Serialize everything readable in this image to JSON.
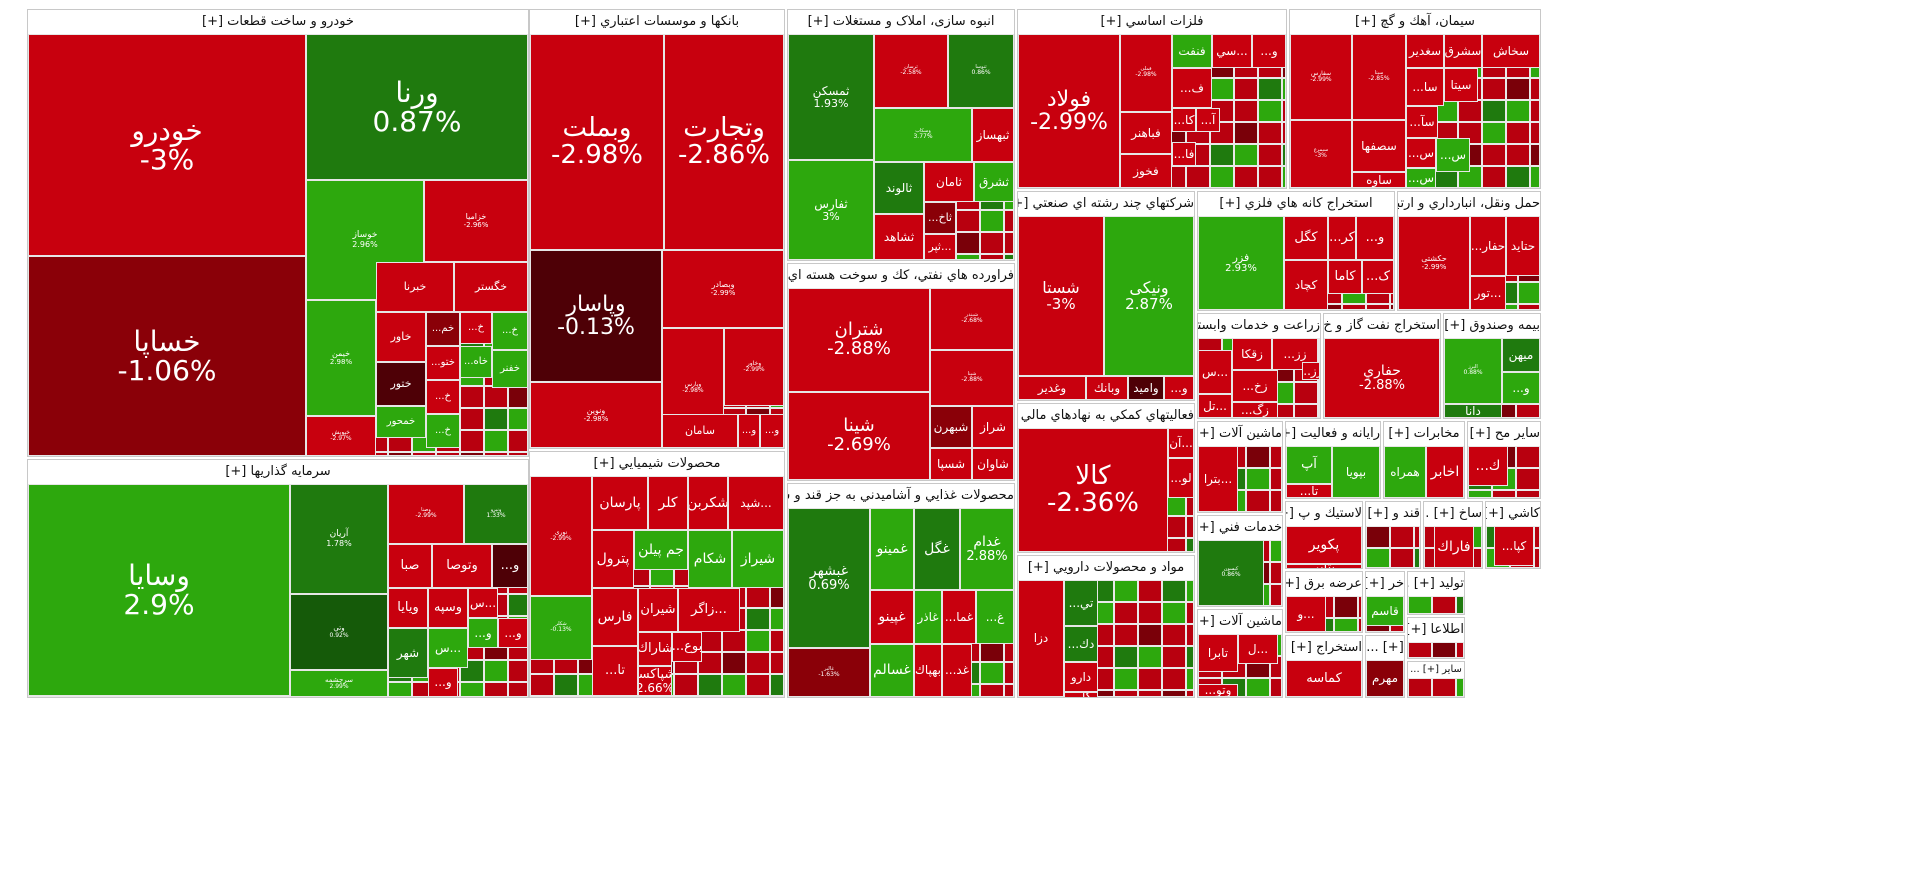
{
  "chart_data": {
    "type": "treemap",
    "title": "",
    "value_unit": "%",
    "color_scale": {
      "strong_negative": "#b30012",
      "negative": "#e0101e",
      "dark_negative": "#6b0009",
      "near_zero_negative": "#3f0006",
      "positive": "#1f9e0d",
      "strong_positive": "#1a6d0a",
      "dark_positive": "#0f4a07"
    },
    "sectors": [
      {
        "name": "خودرو و ساخت قطعات [+]",
        "tiles": [
          {
            "symbol": "خودرو",
            "change": "-3%"
          },
          {
            "symbol": "خساپا",
            "change": "-1.06%"
          },
          {
            "symbol": "ورنا",
            "change": "0.87%"
          },
          {
            "symbol": "خوساز",
            "change": "2.96%"
          },
          {
            "symbol": "خزامیا",
            "change": "-2.96%"
          },
          {
            "symbol": "خیمن",
            "change": "2.98%"
          },
          {
            "symbol": "خبرنا",
            "change": ""
          },
          {
            "symbol": "خگستر",
            "change": ""
          },
          {
            "symbol": "خاور",
            "change": ""
          },
          {
            "symbol": "خم...",
            "change": ""
          },
          {
            "symbol": "خ...",
            "change": ""
          },
          {
            "symbol": "خ...",
            "change": ""
          },
          {
            "symbol": "ختو...",
            "change": ""
          },
          {
            "symbol": "خاه...",
            "change": ""
          },
          {
            "symbol": "خفنر",
            "change": ""
          },
          {
            "symbol": "ختور",
            "change": ""
          },
          {
            "symbol": "خ...",
            "change": ""
          },
          {
            "symbol": "خمحور",
            "change": ""
          },
          {
            "symbol": "خ...",
            "change": ""
          },
          {
            "symbol": "خپویش",
            "change": "-2.97%"
          }
        ]
      },
      {
        "name": "بانكها و موسسات اعتباري [+]",
        "tiles": [
          {
            "symbol": "وبملت",
            "change": "-2.98%"
          },
          {
            "symbol": "وتجارت",
            "change": "-2.86%"
          },
          {
            "symbol": "وپاسار",
            "change": "-0.13%"
          },
          {
            "symbol": "وبصادر",
            "change": "-2.99%"
          },
          {
            "symbol": "ونوین",
            "change": "-2.98%"
          },
          {
            "symbol": "وپارس",
            "change": "-2.98%"
          },
          {
            "symbol": "وخاور",
            "change": "-2.99%"
          },
          {
            "symbol": "سامان",
            "change": ""
          },
          {
            "symbol": "و...",
            "change": ""
          },
          {
            "symbol": "و...",
            "change": ""
          }
        ]
      },
      {
        "name": "انبوه سازی، املاک و مستغلات [+]",
        "tiles": [
          {
            "symbol": "ثمسکن",
            "change": "1.93%"
          },
          {
            "symbol": "ثفارس",
            "change": "3%"
          },
          {
            "symbol": "ثرسان",
            "change": "-2.58%"
          },
          {
            "symbol": "ثنوسا",
            "change": "0.86%"
          },
          {
            "symbol": "وسکاب",
            "change": "3.77%"
          },
          {
            "symbol": "ثبهساز",
            "change": ""
          },
          {
            "symbol": "ثالوند",
            "change": ""
          },
          {
            "symbol": "ثامان",
            "change": ""
          },
          {
            "symbol": "ثشرق",
            "change": ""
          },
          {
            "symbol": "ثاخ...",
            "change": ""
          },
          {
            "symbol": "ثشاهد",
            "change": ""
          },
          {
            "symbol": "...ثپر",
            "change": ""
          }
        ]
      },
      {
        "name": "فلزات اساسي [+]",
        "tiles": [
          {
            "symbol": "فولاد",
            "change": "-2.99%"
          },
          {
            "symbol": "فملی",
            "change": "-2.98%"
          },
          {
            "symbol": "فنفت",
            "change": ""
          },
          {
            "symbol": "...سي",
            "change": ""
          },
          {
            "symbol": "و...",
            "change": ""
          },
          {
            "symbol": "ف...",
            "change": ""
          },
          {
            "symbol": "فباهنر",
            "change": ""
          },
          {
            "symbol": "فخوز",
            "change": ""
          },
          {
            "symbol": "کا...",
            "change": ""
          },
          {
            "symbol": "آ...",
            "change": ""
          },
          {
            "symbol": "فا...",
            "change": ""
          }
        ]
      },
      {
        "name": "سيمان، آهك و گچ [+]",
        "tiles": [
          {
            "symbol": "سفارس",
            "change": "-2.99%"
          },
          {
            "symbol": "سیتا",
            "change": "-2.85%"
          },
          {
            "symbol": "سخاش",
            "change": ""
          },
          {
            "symbol": "سشرق",
            "change": ""
          },
          {
            "symbol": "سغدير",
            "change": ""
          },
          {
            "symbol": "سیتا",
            "change": ""
          },
          {
            "symbol": "سا...",
            "change": ""
          },
          {
            "symbol": "سآ...",
            "change": ""
          },
          {
            "symbol": "س...",
            "change": ""
          },
          {
            "symbol": "سصفها",
            "change": ""
          },
          {
            "symbol": "ساوه",
            "change": ""
          },
          {
            "symbol": "س...",
            "change": ""
          },
          {
            "symbol": "س...",
            "change": ""
          },
          {
            "symbol": "سیمرغ",
            "change": "-3%"
          }
        ]
      },
      {
        "name": "شركتهاي چند رشته اي صنعتي [+]",
        "tiles": [
          {
            "symbol": "شستا",
            "change": "-3%"
          },
          {
            "symbol": "ونیکی",
            "change": "2.87%"
          },
          {
            "symbol": "وغدير",
            "change": ""
          },
          {
            "symbol": "وبانك",
            "change": ""
          },
          {
            "symbol": "وامید",
            "change": ""
          },
          {
            "symbol": "و...",
            "change": ""
          }
        ]
      },
      {
        "name": "استخراج كانه هاي فلزي [+]",
        "tiles": [
          {
            "symbol": "فزر",
            "change": "2.93%"
          },
          {
            "symbol": "کگل",
            "change": ""
          },
          {
            "symbol": "کر...",
            "change": ""
          },
          {
            "symbol": "و...",
            "change": ""
          },
          {
            "symbol": "کاما",
            "change": ""
          },
          {
            "symbol": "ک...",
            "change": ""
          },
          {
            "symbol": "کچاد",
            "change": ""
          }
        ]
      },
      {
        "name": "حمل ونقل، انبارداري و ارتبا [+]...",
        "tiles": [
          {
            "symbol": "حکشتی",
            "change": "-2.99%"
          },
          {
            "symbol": "حفار...",
            "change": ""
          },
          {
            "symbol": "حتاید",
            "change": ""
          },
          {
            "symbol": "...تور",
            "change": ""
          }
        ]
      },
      {
        "name": "فراورده هاي نفتي، كك و سوخت هسته اي [+]",
        "tiles": [
          {
            "symbol": "شتران",
            "change": "-2.88%"
          },
          {
            "symbol": "شبندر",
            "change": "-2.68%"
          },
          {
            "symbol": "شپنا",
            "change": "-2.88%"
          },
          {
            "symbol": "شینا",
            "change": "-2.69%"
          },
          {
            "symbol": "شراز",
            "change": ""
          },
          {
            "symbol": "شبهرن",
            "change": ""
          },
          {
            "symbol": "شاوان",
            "change": ""
          },
          {
            "symbol": "شسپا",
            "change": ""
          }
        ]
      },
      {
        "name": "زراعت و خدمات وابسته [+]",
        "tiles": [
          {
            "symbol": "زقکا",
            "change": ""
          },
          {
            "symbol": "زز...",
            "change": ""
          },
          {
            "symbol": "زز...",
            "change": ""
          },
          {
            "symbol": "...س",
            "change": ""
          },
          {
            "symbol": "زخ...",
            "change": ""
          },
          {
            "symbol": "زگ...",
            "change": ""
          },
          {
            "symbol": "...تل",
            "change": ""
          }
        ]
      },
      {
        "name": "استخراج نفت گاز و خ [+]...",
        "tiles": [
          {
            "symbol": "حفاري",
            "change": "-2.88%"
          }
        ]
      },
      {
        "name": "بيمه وصندوق [+]...",
        "tiles": [
          {
            "symbol": "ميهن",
            "change": ""
          },
          {
            "symbol": "و...",
            "change": ""
          },
          {
            "symbol": "دانا",
            "change": ""
          },
          {
            "symbol": "البرز",
            "change": "0.88%"
          }
        ]
      },
      {
        "name": "سرمايه گذاريها [+]",
        "tiles": [
          {
            "symbol": "وسايا",
            "change": "2.9%"
          },
          {
            "symbol": "آریان",
            "change": "1.78%"
          },
          {
            "symbol": "وتي",
            "change": "0.92%"
          },
          {
            "symbol": "سرچشمه",
            "change": "2.99%"
          },
          {
            "symbol": "وصنا",
            "change": "-2.99%"
          },
          {
            "symbol": "ونیرو",
            "change": "1.33%"
          },
          {
            "symbol": "صبا",
            "change": ""
          },
          {
            "symbol": "وتوصا",
            "change": ""
          },
          {
            "symbol": "و...",
            "change": ""
          },
          {
            "symbol": "ويايا",
            "change": ""
          },
          {
            "symbol": "وسپه",
            "change": ""
          },
          {
            "symbol": "...س",
            "change": ""
          },
          {
            "symbol": "و...",
            "change": ""
          },
          {
            "symbol": "...س",
            "change": ""
          },
          {
            "symbol": "و...",
            "change": ""
          },
          {
            "symbol": "شهر",
            "change": ""
          },
          {
            "symbol": "و...",
            "change": ""
          }
        ]
      },
      {
        "name": "محصولات شيميايي [+]",
        "tiles": [
          {
            "symbol": "نوری",
            "change": "-2.99%"
          },
          {
            "symbol": "پارسان",
            "change": ""
          },
          {
            "symbol": "کلر",
            "change": ""
          },
          {
            "symbol": "شکربن",
            "change": ""
          },
          {
            "symbol": "...شپد",
            "change": ""
          },
          {
            "symbol": "پترول",
            "change": ""
          },
          {
            "symbol": "جم پیلن",
            "change": ""
          },
          {
            "symbol": "شکام",
            "change": ""
          },
          {
            "symbol": "شیراز",
            "change": ""
          },
          {
            "symbol": "فارس",
            "change": ""
          },
          {
            "symbol": "شیران",
            "change": ""
          },
          {
            "symbol": "...زاگر",
            "change": ""
          },
          {
            "symbol": "تا...",
            "change": ""
          },
          {
            "symbol": "شاراك",
            "change": ""
          },
          {
            "symbol": "بوع...",
            "change": ""
          },
          {
            "symbol": "ش...",
            "change": ""
          },
          {
            "symbol": "شپاکسا",
            "change": "2.66%"
          },
          {
            "symbol": "شکلر",
            "change": "-0.13%"
          }
        ]
      },
      {
        "name": "محصولات غذايي و آشاميدني به جز قند و شكر [+]",
        "tiles": [
          {
            "symbol": "غبشهر",
            "change": "0.69%"
          },
          {
            "symbol": "غمینو",
            "change": ""
          },
          {
            "symbol": "غگل",
            "change": ""
          },
          {
            "symbol": "غدام",
            "change": "2.88%"
          },
          {
            "symbol": "غپینو",
            "change": ""
          },
          {
            "symbol": "غاذر",
            "change": ""
          },
          {
            "symbol": "غما...",
            "change": ""
          },
          {
            "symbol": "غ...",
            "change": ""
          },
          {
            "symbol": "غسالم",
            "change": ""
          },
          {
            "symbol": "بهپاك",
            "change": ""
          },
          {
            "symbol": "غد...",
            "change": ""
          },
          {
            "symbol": "غکور",
            "change": ""
          },
          {
            "symbol": "غالبر",
            "change": "-1.63%"
          }
        ]
      },
      {
        "name": "فعاليتهاي كمكي به نهادهاي مالي [+] ...",
        "tiles": [
          {
            "symbol": "كالا",
            "change": "-2.36%"
          },
          {
            "symbol": "...آن",
            "change": ""
          },
          {
            "symbol": "لو...",
            "change": ""
          }
        ]
      },
      {
        "name": "مواد و محصولات دارويي [+]",
        "tiles": [
          {
            "symbol": "دزا",
            "change": ""
          },
          {
            "symbol": "تي...",
            "change": ""
          },
          {
            "symbol": "دك...",
            "change": ""
          },
          {
            "symbol": "دارو",
            "change": ""
          },
          {
            "symbol": "دقارا",
            "change": ""
          },
          {
            "symbol": "كا...",
            "change": ""
          }
        ]
      },
      {
        "name": "ماشين آلات [+] ...",
        "tiles": [
          {
            "symbol": "...بترا",
            "change": ""
          }
        ]
      },
      {
        "name": "رايانه و فعاليت [+] ...",
        "tiles": [
          {
            "symbol": "بپويا",
            "change": ""
          },
          {
            "symbol": "آپ",
            "change": ""
          },
          {
            "symbol": "تا...",
            "change": ""
          }
        ]
      },
      {
        "name": "مخابرات [+]",
        "tiles": [
          {
            "symbol": "همراه",
            "change": ""
          },
          {
            "symbol": "اخابر",
            "change": ""
          }
        ]
      },
      {
        "name": "ساير مح [+] ...",
        "tiles": [
          {
            "symbol": "ك...",
            "change": ""
          }
        ]
      },
      {
        "name": "خدمات فني [+] ...",
        "tiles": [
          {
            "symbol": "کیسون",
            "change": "0.86%"
          }
        ]
      },
      {
        "name": "لاستيك و پ [+] ...",
        "tiles": [
          {
            "symbol": "پكوير",
            "change": ""
          },
          {
            "symbol": "پتاير",
            "change": ""
          }
        ]
      },
      {
        "name": "قند و [+] ...",
        "tiles": []
      },
      {
        "name": "ساخ [+] ...",
        "tiles": [
          {
            "symbol": "فاراك",
            "change": ""
          }
        ]
      },
      {
        "name": "كاشي [+] ...",
        "tiles": [
          {
            "symbol": "كپا...",
            "change": ""
          }
        ]
      },
      {
        "name": "عرضه برق [+] ...",
        "tiles": [
          {
            "symbol": "...و",
            "change": ""
          }
        ]
      },
      {
        "name": "خر [+] ...",
        "tiles": [
          {
            "symbol": "قاسم",
            "change": ""
          }
        ]
      },
      {
        "name": "توليد [+] ...",
        "tiles": []
      },
      {
        "name": "اطلاعا [+]",
        "tiles": []
      },
      {
        "name": "ماشين آلات [+] ...",
        "tiles": [
          {
            "symbol": "...ل",
            "change": ""
          },
          {
            "symbol": "تابرا",
            "change": ""
          },
          {
            "symbol": "وتو...",
            "change": ""
          }
        ]
      },
      {
        "name": "استخراج [+] ...",
        "tiles": [
          {
            "symbol": "كماسه",
            "change": ""
          }
        ]
      },
      {
        "name": "[+] ...",
        "tiles": [
          {
            "symbol": "مهرم",
            "change": ""
          }
        ]
      },
      {
        "name": "ساير [+] ...",
        "tiles": []
      }
    ]
  }
}
